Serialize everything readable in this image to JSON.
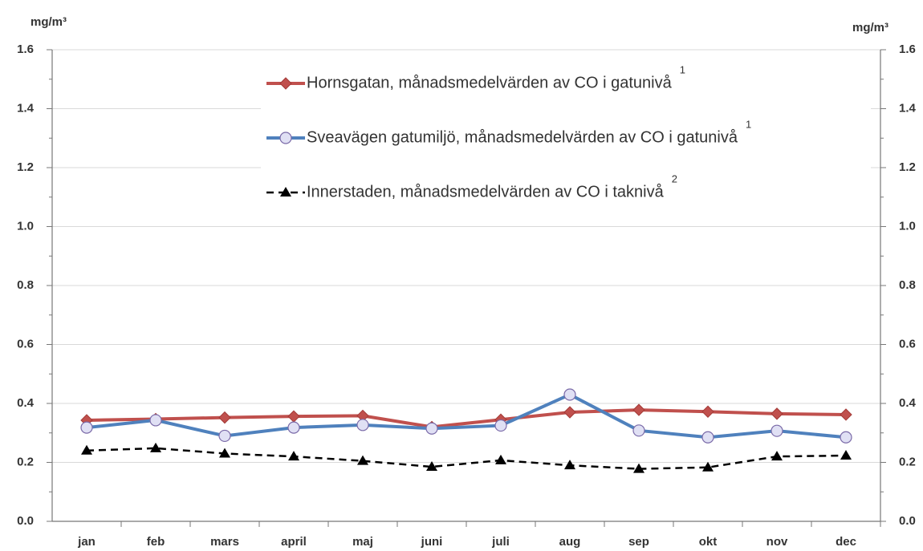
{
  "chart_data": {
    "type": "line",
    "y_label": "mg/m³",
    "y2_label": "mg/m³",
    "categories": [
      "jan",
      "feb",
      "mars",
      "april",
      "maj",
      "juni",
      "juli",
      "aug",
      "sep",
      "okt",
      "nov",
      "dec"
    ],
    "series": [
      {
        "name": "Hornsgatan, månadsmedelvärden av CO i gatunivå",
        "note": "1",
        "color": "#c0504d",
        "marker": "diamond",
        "dash": false,
        "values": [
          0.343,
          0.347,
          0.352,
          0.356,
          0.358,
          0.32,
          0.345,
          0.37,
          0.378,
          0.372,
          0.365,
          0.362
        ]
      },
      {
        "name": "Sveavägen gatumiljö, månadsmedelvärden av CO i gatunivå",
        "note": "1",
        "color": "#4f81bd",
        "marker": "circle",
        "dash": false,
        "values": [
          0.318,
          0.343,
          0.29,
          0.318,
          0.327,
          0.315,
          0.325,
          0.43,
          0.308,
          0.285,
          0.307,
          0.285
        ]
      },
      {
        "name": "Innerstaden, månadsmedelvärden av CO i taknivå",
        "note": "2",
        "color": "#000000",
        "marker": "triangle",
        "dash": true,
        "values": [
          0.24,
          0.248,
          0.23,
          0.22,
          0.205,
          0.185,
          0.207,
          0.19,
          0.178,
          0.183,
          0.22,
          0.223
        ]
      }
    ],
    "ylim": [
      0,
      1.6
    ],
    "yticks": [
      {
        "value": 0,
        "label": "0.0"
      },
      0.2,
      0.4,
      0.6,
      0.8,
      {
        "value": 1,
        "label": "1.0"
      },
      1.2,
      1.4,
      1.6
    ],
    "y2lim": [
      0,
      1.6
    ],
    "y2ticks": [
      {
        "value": 0,
        "label": "0.0"
      },
      0.2,
      0.4,
      0.6,
      0.8,
      {
        "value": 1,
        "label": "1.0"
      },
      1.2,
      1.4,
      1.6
    ],
    "grid": true
  }
}
